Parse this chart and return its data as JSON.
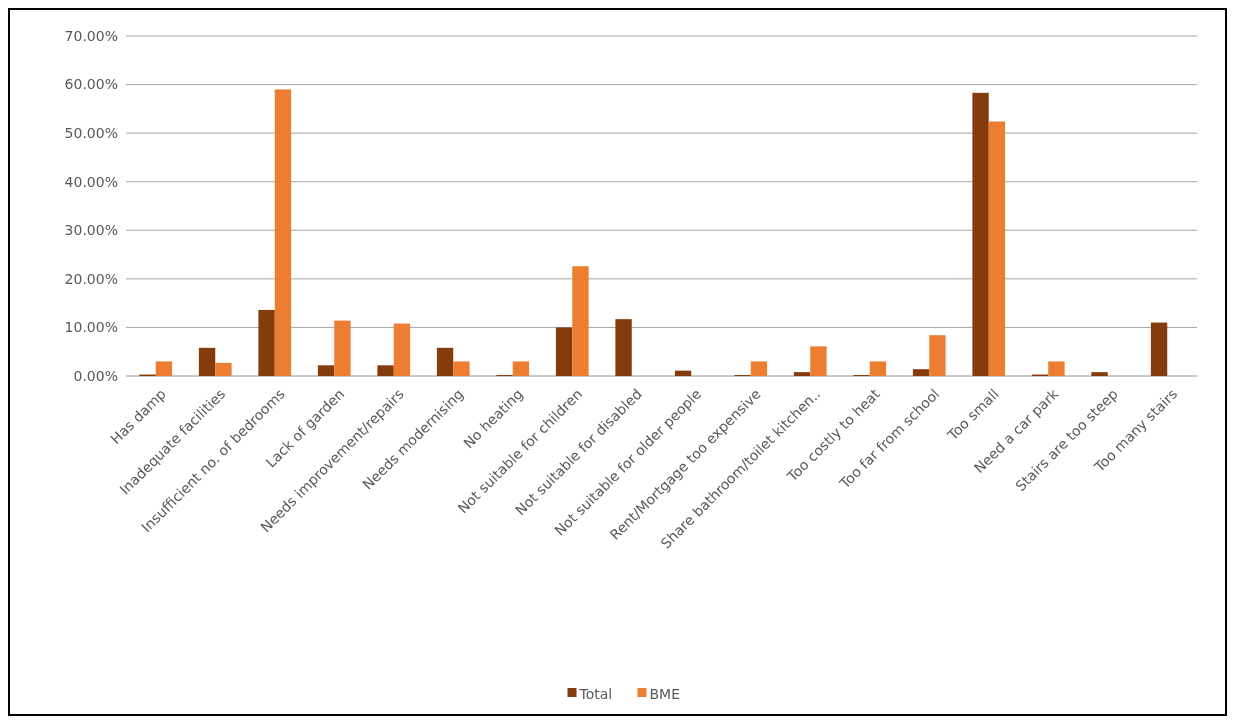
{
  "chart_data": {
    "type": "bar",
    "categories": [
      "Has damp",
      "Inadequate facilities",
      "Insufficient no. of bedrooms",
      "Lack of garden",
      "Needs improvement/repairs",
      "Needs modernising",
      "No heating",
      "Not suitable for children",
      "Not suitable for disabled",
      "Not suitable for older people",
      "Rent/Mortgage too expensive",
      "Share bathroom/toilet kitchen..",
      "Too costly to heat",
      "Too far from school",
      "Too small",
      "Need a car park",
      "Stairs are too steep",
      "Too many stairs"
    ],
    "series": [
      {
        "name": "Total",
        "color": "#843c0c",
        "values": [
          0.3,
          5.8,
          13.6,
          2.2,
          2.2,
          5.8,
          0.2,
          10,
          11.7,
          1.1,
          0.2,
          0.8,
          0.2,
          1.4,
          58.3,
          0.3,
          0.8,
          11
        ]
      },
      {
        "name": "BME",
        "color": "#ed7d31",
        "values": [
          3,
          2.7,
          59,
          11.4,
          10.8,
          3,
          3,
          22.6,
          0,
          0,
          3,
          6.1,
          3,
          8.4,
          52.4,
          3,
          0,
          0
        ]
      }
    ],
    "ylim": [
      0,
      70
    ],
    "yticks": [
      {
        "value": 0,
        "label": "0.00%"
      },
      {
        "value": 10,
        "label": "10.00%"
      },
      {
        "value": 20,
        "label": "20.00%"
      },
      {
        "value": 30,
        "label": "30.00%"
      },
      {
        "value": 40,
        "label": "40.00%"
      },
      {
        "value": 50,
        "label": "50.00%"
      },
      {
        "value": 60,
        "label": "60.00%"
      },
      {
        "value": 70,
        "label": "70.00%"
      }
    ],
    "grid": "y",
    "legend": "bottom"
  }
}
